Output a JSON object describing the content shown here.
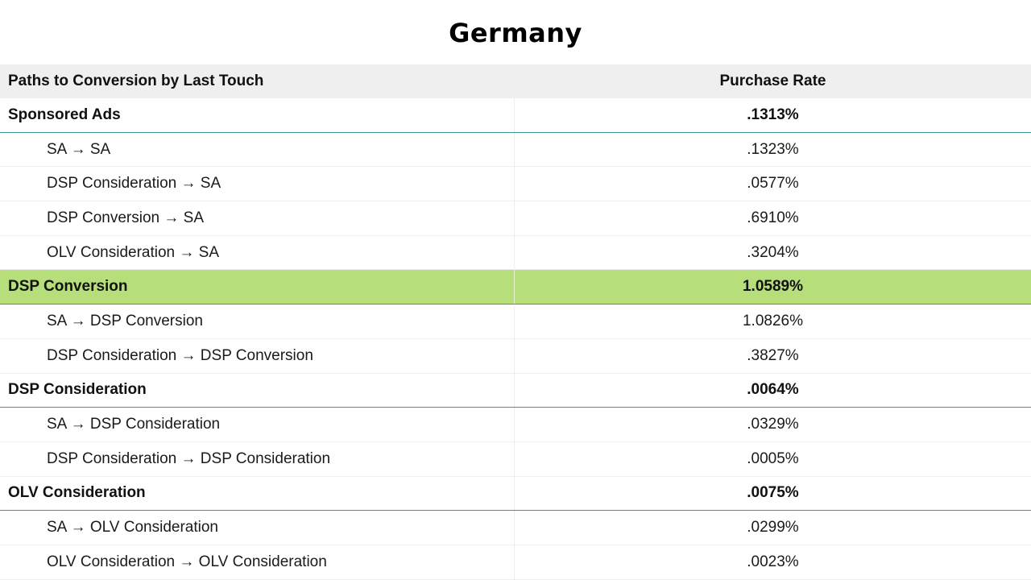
{
  "title": "Germany",
  "table": {
    "headers": {
      "path": "Paths to Conversion by Last Touch",
      "rate": "Purchase Rate"
    },
    "rows": [
      {
        "type": "group",
        "path": "Sponsored Ads",
        "rate": ".1313%",
        "highlight": false
      },
      {
        "type": "sub",
        "path": "SA → SA",
        "rate": ".1323%"
      },
      {
        "type": "sub",
        "path": "DSP Consideration → SA",
        "rate": ".0577%"
      },
      {
        "type": "sub",
        "path": "DSP Conversion → SA",
        "rate": ".6910%"
      },
      {
        "type": "sub",
        "path": "OLV Consideration → SA",
        "rate": ".3204%"
      },
      {
        "type": "group",
        "path": "DSP Conversion",
        "rate": "1.0589%",
        "highlight": true
      },
      {
        "type": "sub",
        "path": "SA → DSP Conversion",
        "rate": "1.0826%"
      },
      {
        "type": "sub",
        "path": "DSP Consideration → DSP Conversion",
        "rate": ".3827%"
      },
      {
        "type": "group",
        "path": "DSP Consideration",
        "rate": ".0064%",
        "highlight": false
      },
      {
        "type": "sub",
        "path": "SA → DSP Consideration",
        "rate": ".0329%"
      },
      {
        "type": "sub",
        "path": "DSP Consideration → DSP Consideration",
        "rate": ".0005%"
      },
      {
        "type": "group",
        "path": "OLV Consideration",
        "rate": ".0075%",
        "highlight": false
      },
      {
        "type": "sub",
        "path": "SA → OLV Consideration",
        "rate": ".0299%"
      },
      {
        "type": "sub",
        "path": "OLV Consideration → OLV Consideration",
        "rate": ".0023%"
      }
    ]
  },
  "colors": {
    "highlight": "#b6de7a",
    "group_divider": "#3a9a92",
    "header_bg": "#efefef"
  }
}
